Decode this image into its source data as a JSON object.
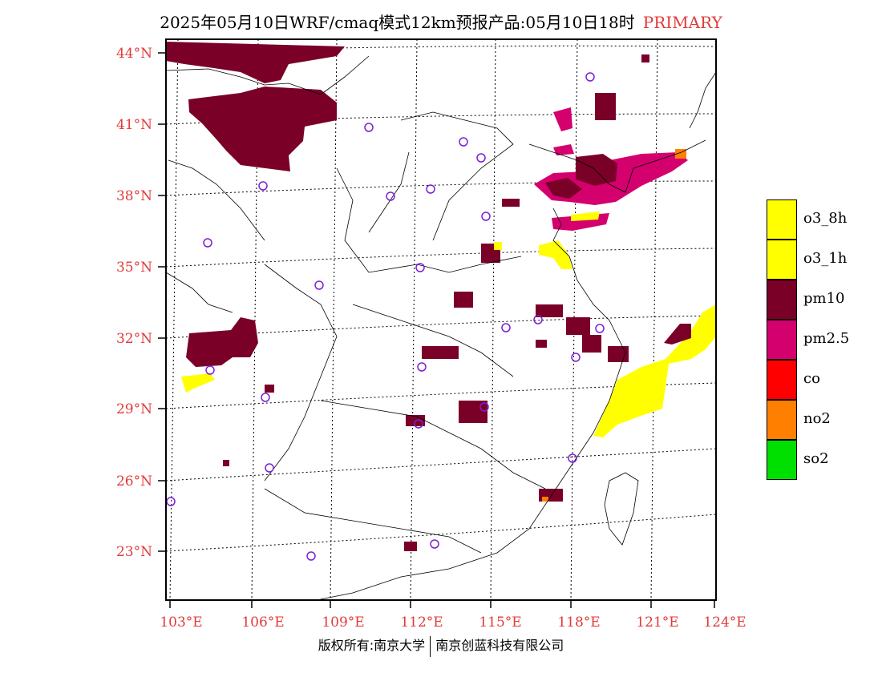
{
  "header": {
    "title": "2025年05月10日WRF/cmaq模式12km预报产品:05月10日18时",
    "tag": "PRIMARY"
  },
  "axes": {
    "lat_labels": [
      "44°N",
      "41°N",
      "38°N",
      "35°N",
      "32°N",
      "29°N",
      "26°N",
      "23°N"
    ],
    "lon_labels": [
      "103°E",
      "106°E",
      "109°E",
      "112°E",
      "115°E",
      "118°E",
      "121°E",
      "124°E"
    ]
  },
  "legend": {
    "items": [
      {
        "label": "o3_8h",
        "color": "#ffff00"
      },
      {
        "label": "o3_1h",
        "color": "#ffff00"
      },
      {
        "label": "pm10",
        "color": "#7a0028"
      },
      {
        "label": "pm2.5",
        "color": "#d4006e"
      },
      {
        "label": "co",
        "color": "#ff0000"
      },
      {
        "label": "no2",
        "color": "#ff7f00"
      },
      {
        "label": "so2",
        "color": "#00e000"
      }
    ]
  },
  "footer": {
    "left": "版权所有:南京大学",
    "right": "南京创蓝科技有限公司"
  },
  "colors": {
    "pm10": "#7a0028",
    "pm25": "#d4006e",
    "o3": "#ffff00",
    "no2": "#ff7f00",
    "station": "#7d1fd6",
    "axis_label": "#e23a3a"
  }
}
